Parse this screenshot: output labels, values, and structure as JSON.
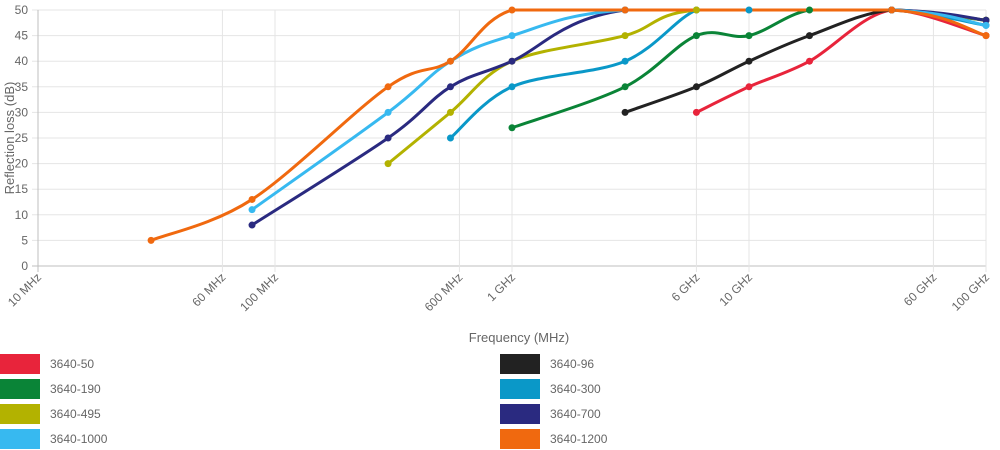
{
  "chart_data": {
    "type": "line",
    "xlabel": "Frequency (MHz)",
    "ylabel": "Reflection loss (dB)",
    "x_scale": "log",
    "xlim": [
      10,
      100000
    ],
    "ylim": [
      0,
      50
    ],
    "grid": true,
    "legend_position": "bottom",
    "x_ticks": [
      {
        "value": 10,
        "label": "10 MHz"
      },
      {
        "value": 60,
        "label": "60 MHz"
      },
      {
        "value": 100,
        "label": "100 MHz"
      },
      {
        "value": 600,
        "label": "600 MHz"
      },
      {
        "value": 1000,
        "label": "1 GHz"
      },
      {
        "value": 6000,
        "label": "6 GHz"
      },
      {
        "value": 10000,
        "label": "10 GHz"
      },
      {
        "value": 60000,
        "label": "60 GHz"
      },
      {
        "value": 100000,
        "label": "100 GHz"
      }
    ],
    "y_ticks": [
      0,
      5,
      10,
      15,
      20,
      25,
      30,
      35,
      40,
      45,
      50
    ],
    "series": [
      {
        "name": "3640-50",
        "color": "#e8243b",
        "points": [
          [
            6000,
            30
          ],
          [
            10000,
            35
          ],
          [
            18000,
            40
          ],
          [
            40000,
            50
          ],
          [
            100000,
            45
          ]
        ]
      },
      {
        "name": "3640-96",
        "color": "#222222",
        "points": [
          [
            3000,
            30
          ],
          [
            6000,
            35
          ],
          [
            10000,
            40
          ],
          [
            18000,
            45
          ],
          [
            40000,
            50
          ],
          [
            100000,
            48
          ]
        ]
      },
      {
        "name": "3640-190",
        "color": "#0a8437",
        "points": [
          [
            1000,
            27
          ],
          [
            3000,
            35
          ],
          [
            6000,
            45
          ],
          [
            10000,
            45
          ],
          [
            18000,
            50
          ],
          [
            40000,
            50
          ],
          [
            100000,
            48
          ]
        ]
      },
      {
        "name": "3640-300",
        "color": "#0a98c8",
        "points": [
          [
            550,
            25
          ],
          [
            1000,
            35
          ],
          [
            3000,
            40
          ],
          [
            6000,
            50
          ],
          [
            10000,
            50
          ],
          [
            40000,
            50
          ],
          [
            100000,
            47
          ]
        ]
      },
      {
        "name": "3640-495",
        "color": "#b3b200",
        "points": [
          [
            300,
            20
          ],
          [
            550,
            30
          ],
          [
            1000,
            40
          ],
          [
            3000,
            45
          ],
          [
            6000,
            50
          ],
          [
            40000,
            50
          ],
          [
            100000,
            48
          ]
        ]
      },
      {
        "name": "3640-700",
        "color": "#2a2a80",
        "points": [
          [
            80,
            8
          ],
          [
            300,
            25
          ],
          [
            550,
            35
          ],
          [
            1000,
            40
          ],
          [
            3000,
            50
          ],
          [
            40000,
            50
          ],
          [
            100000,
            48
          ]
        ]
      },
      {
        "name": "3640-1000",
        "color": "#37b9f0",
        "points": [
          [
            80,
            11
          ],
          [
            300,
            30
          ],
          [
            550,
            40
          ],
          [
            1000,
            45
          ],
          [
            3000,
            50
          ],
          [
            40000,
            50
          ],
          [
            100000,
            47
          ]
        ]
      },
      {
        "name": "3640-1200",
        "color": "#f0690f",
        "points": [
          [
            30,
            5
          ],
          [
            80,
            13
          ],
          [
            300,
            35
          ],
          [
            550,
            40
          ],
          [
            1000,
            50
          ],
          [
            3000,
            50
          ],
          [
            40000,
            50
          ],
          [
            100000,
            45
          ]
        ]
      }
    ]
  }
}
